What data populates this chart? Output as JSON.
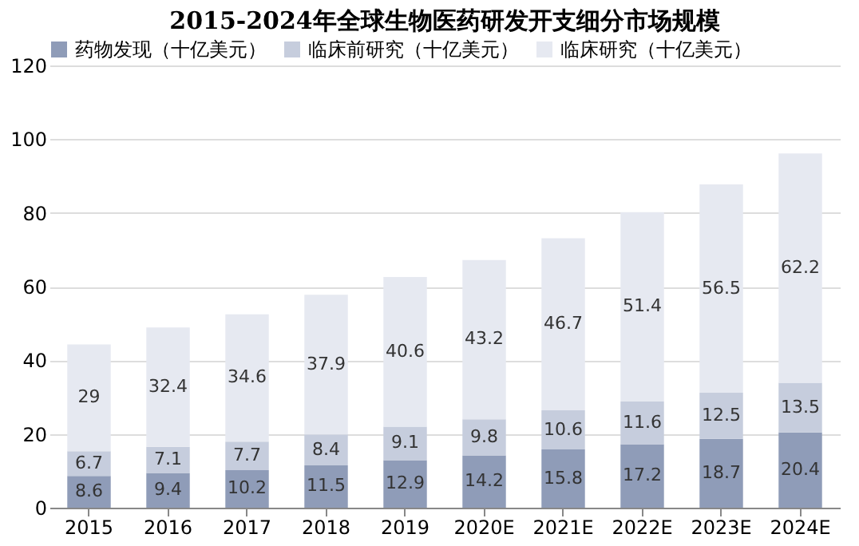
{
  "chart_data": {
    "type": "bar",
    "title": "2015-2024年全球生物医药研发开支细分市场规模",
    "categories": [
      "2015",
      "2016",
      "2017",
      "2018",
      "2019",
      "2020E",
      "2021E",
      "2022E",
      "2023E",
      "2024E"
    ],
    "series": [
      {
        "name": "药物发现（十亿美元）",
        "color": "#8f9cb8",
        "values": [
          8.6,
          9.4,
          10.2,
          11.5,
          12.9,
          14.2,
          15.8,
          17.2,
          18.7,
          20.4
        ]
      },
      {
        "name": "临床前研究（十亿美元）",
        "color": "#c6cddd",
        "values": [
          6.7,
          7.1,
          7.7,
          8.4,
          9.1,
          9.8,
          10.6,
          11.6,
          12.5,
          13.5
        ]
      },
      {
        "name": "临床研究（十亿美元）",
        "color": "#e6e9f1",
        "values": [
          29,
          32.4,
          34.6,
          37.9,
          40.6,
          43.2,
          46.7,
          51.4,
          56.5,
          62.2
        ]
      }
    ],
    "stacked": true,
    "data_labels": true,
    "ylim": [
      0,
      120
    ],
    "yticks": [
      0,
      20,
      40,
      60,
      80,
      100,
      120
    ],
    "grid": "y",
    "legend": "top left"
  }
}
